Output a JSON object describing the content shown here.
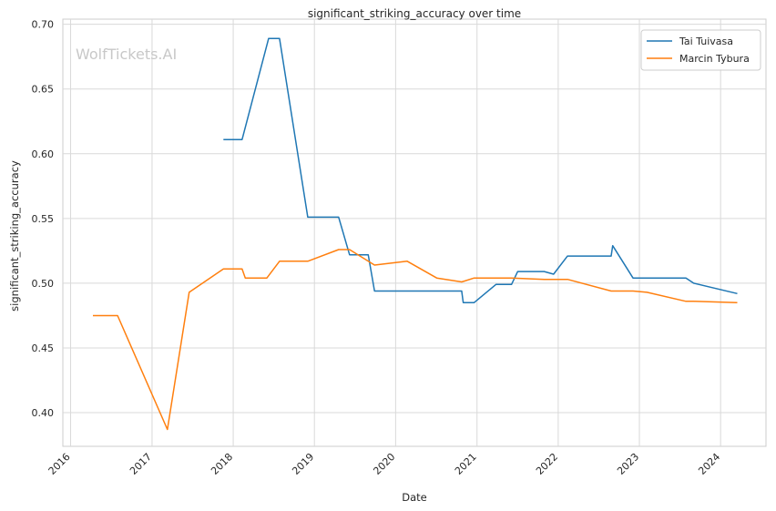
{
  "chart_data": {
    "type": "line",
    "title": "significant_striking_accuracy over time",
    "xlabel": "Date",
    "ylabel": "significant_striking_accuracy",
    "watermark": "WolfTickets.AI",
    "x_ticks": [
      "2016",
      "2017",
      "2018",
      "2019",
      "2020",
      "2021",
      "2022",
      "2023",
      "2024"
    ],
    "y_ticks": [
      "0.40",
      "0.45",
      "0.50",
      "0.55",
      "0.60",
      "0.65",
      "0.70"
    ],
    "xlim": [
      "2015-11-27",
      "2024-07-23"
    ],
    "ylim": [
      0.374,
      0.704
    ],
    "grid": true,
    "legend_position": "top-right",
    "series": [
      {
        "name": "Tai Tuivasa",
        "color": "#1f77b4",
        "points": [
          [
            "2017-11-18",
            0.611
          ],
          [
            "2018-02-10",
            0.611
          ],
          [
            "2018-06-09",
            0.689
          ],
          [
            "2018-07-28",
            0.689
          ],
          [
            "2018-12-02",
            0.551
          ],
          [
            "2019-04-20",
            0.551
          ],
          [
            "2019-06-08",
            0.522
          ],
          [
            "2019-08-31",
            0.522
          ],
          [
            "2019-09-28",
            0.494
          ],
          [
            "2020-10-24",
            0.494
          ],
          [
            "2020-10-31",
            0.485
          ],
          [
            "2020-12-19",
            0.485
          ],
          [
            "2021-03-27",
            0.499
          ],
          [
            "2021-06-05",
            0.499
          ],
          [
            "2021-07-03",
            0.509
          ],
          [
            "2021-10-30",
            0.509
          ],
          [
            "2021-12-11",
            0.507
          ],
          [
            "2022-02-12",
            0.521
          ],
          [
            "2022-08-27",
            0.521
          ],
          [
            "2022-09-03",
            0.529
          ],
          [
            "2022-12-03",
            0.504
          ],
          [
            "2023-07-29",
            0.504
          ],
          [
            "2023-09-02",
            0.5
          ],
          [
            "2024-03-16",
            0.492
          ]
        ]
      },
      {
        "name": "Marcin Tybura",
        "color": "#ff7f0e",
        "points": [
          [
            "2016-04-10",
            0.475
          ],
          [
            "2016-07-30",
            0.475
          ],
          [
            "2017-03-11",
            0.387
          ],
          [
            "2017-06-17",
            0.493
          ],
          [
            "2017-11-18",
            0.511
          ],
          [
            "2018-02-10",
            0.511
          ],
          [
            "2018-02-24",
            0.504
          ],
          [
            "2018-06-01",
            0.504
          ],
          [
            "2018-07-28",
            0.517
          ],
          [
            "2018-12-02",
            0.517
          ],
          [
            "2019-04-20",
            0.526
          ],
          [
            "2019-06-08",
            0.526
          ],
          [
            "2019-09-28",
            0.514
          ],
          [
            "2020-02-22",
            0.517
          ],
          [
            "2020-07-04",
            0.504
          ],
          [
            "2020-10-24",
            0.501
          ],
          [
            "2020-12-19",
            0.504
          ],
          [
            "2021-06-05",
            0.504
          ],
          [
            "2021-10-30",
            0.503
          ],
          [
            "2022-02-12",
            0.503
          ],
          [
            "2022-08-27",
            0.494
          ],
          [
            "2022-12-03",
            0.494
          ],
          [
            "2023-02-04",
            0.493
          ],
          [
            "2023-07-29",
            0.486
          ],
          [
            "2023-09-02",
            0.486
          ],
          [
            "2024-03-16",
            0.485
          ]
        ]
      }
    ]
  }
}
